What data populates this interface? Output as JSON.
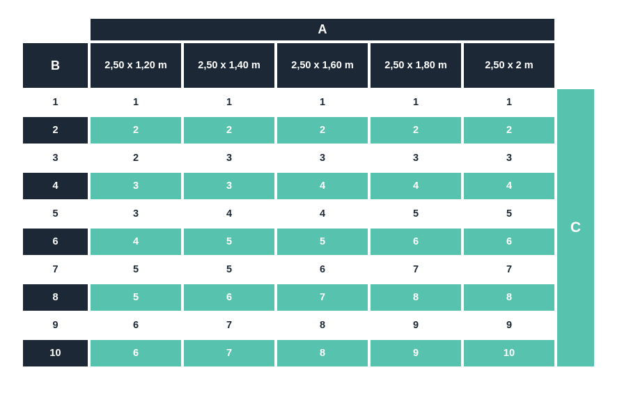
{
  "colors": {
    "navy": "#1d2836",
    "teal": "#57c3ae",
    "background": "#ffffff"
  },
  "table": {
    "column_group_label": "A",
    "row_group_label": "B",
    "side_label": "C",
    "column_headers": [
      "2,50 x 1,20 m",
      "2,50 x 1,40 m",
      "2,50 x 1,60 m",
      "2,50 x 1,80 m",
      "2,50 x 2 m"
    ],
    "rows": [
      {
        "label": "1",
        "highlighted": false,
        "values": [
          "1",
          "1",
          "1",
          "1",
          "1"
        ]
      },
      {
        "label": "2",
        "highlighted": true,
        "values": [
          "2",
          "2",
          "2",
          "2",
          "2"
        ]
      },
      {
        "label": "3",
        "highlighted": false,
        "values": [
          "2",
          "3",
          "3",
          "3",
          "3"
        ]
      },
      {
        "label": "4",
        "highlighted": true,
        "values": [
          "3",
          "3",
          "4",
          "4",
          "4"
        ]
      },
      {
        "label": "5",
        "highlighted": false,
        "values": [
          "3",
          "4",
          "4",
          "5",
          "5"
        ]
      },
      {
        "label": "6",
        "highlighted": true,
        "values": [
          "4",
          "5",
          "5",
          "6",
          "6"
        ]
      },
      {
        "label": "7",
        "highlighted": false,
        "values": [
          "5",
          "5",
          "6",
          "7",
          "7"
        ]
      },
      {
        "label": "8",
        "highlighted": true,
        "values": [
          "5",
          "6",
          "7",
          "8",
          "8"
        ]
      },
      {
        "label": "9",
        "highlighted": false,
        "values": [
          "6",
          "7",
          "8",
          "9",
          "9"
        ]
      },
      {
        "label": "10",
        "highlighted": true,
        "values": [
          "6",
          "7",
          "8",
          "9",
          "10"
        ]
      }
    ]
  },
  "chart_data": {
    "type": "table",
    "title": "",
    "column_group_label": "A",
    "row_group_label": "B",
    "side_label": "C",
    "columns": [
      "2,50 x 1,20 m",
      "2,50 x 1,40 m",
      "2,50 x 1,60 m",
      "2,50 x 1,80 m",
      "2,50 x 2 m"
    ],
    "row_labels": [
      1,
      2,
      3,
      4,
      5,
      6,
      7,
      8,
      9,
      10
    ],
    "values": [
      [
        1,
        1,
        1,
        1,
        1
      ],
      [
        2,
        2,
        2,
        2,
        2
      ],
      [
        2,
        3,
        3,
        3,
        3
      ],
      [
        3,
        3,
        4,
        4,
        4
      ],
      [
        3,
        4,
        4,
        5,
        5
      ],
      [
        4,
        5,
        5,
        6,
        6
      ],
      [
        5,
        5,
        6,
        7,
        7
      ],
      [
        5,
        6,
        7,
        8,
        8
      ],
      [
        6,
        7,
        8,
        9,
        9
      ],
      [
        6,
        7,
        8,
        9,
        10
      ]
    ]
  }
}
